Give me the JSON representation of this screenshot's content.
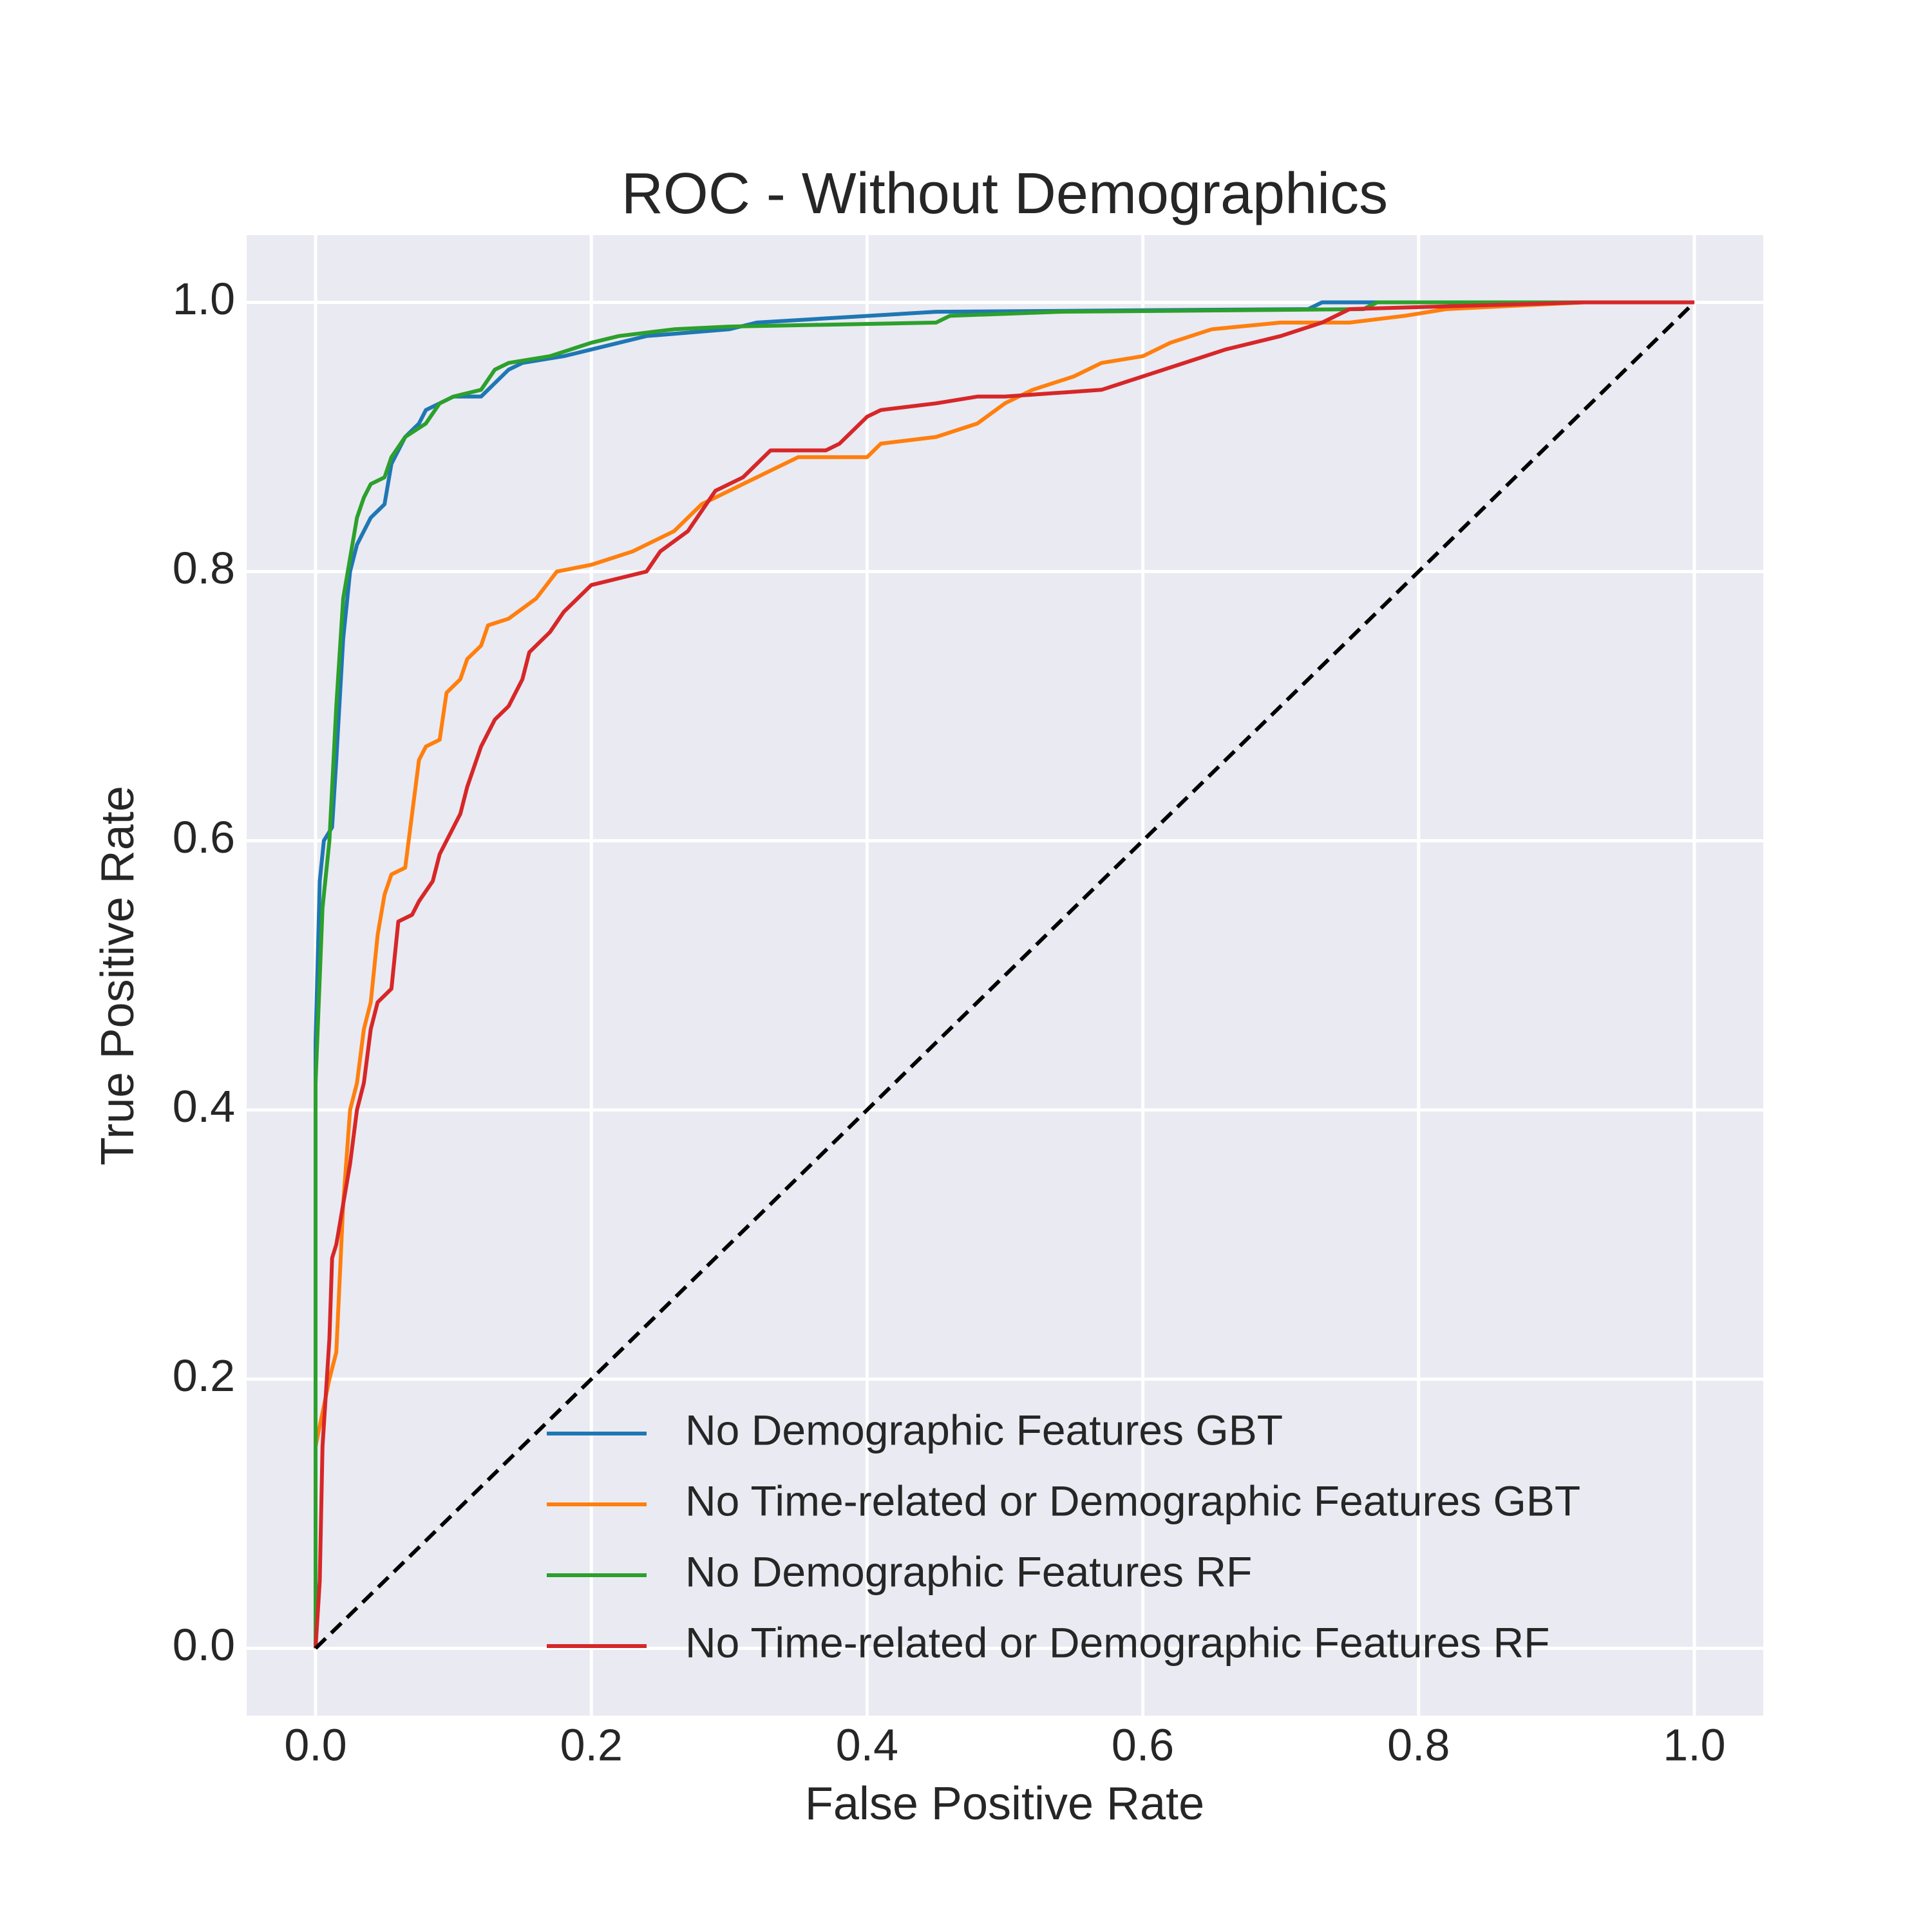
{
  "chart_data": {
    "type": "line",
    "title": "ROC - Without Demographics",
    "x_label": "False Positive Rate",
    "y_label": "True Positive Rate",
    "xlim": [
      -0.05,
      1.05
    ],
    "ylim": [
      -0.05,
      1.05
    ],
    "xticks": [
      {
        "value": 0,
        "label": "0.0"
      },
      0.2,
      0.4,
      0.6,
      0.8,
      {
        "value": 1,
        "label": "1.0"
      }
    ],
    "yticks": [
      {
        "value": 0,
        "label": "0.0"
      },
      0.2,
      0.4,
      0.6,
      0.8,
      {
        "value": 1,
        "label": "1.0"
      }
    ],
    "grid": true,
    "legend_position": "lower right",
    "series": [
      {
        "name": "No Demographic Features GBT",
        "color": "#1f77b4",
        "x": [
          0,
          0,
          0.003,
          0.006,
          0.012,
          0.015,
          0.02,
          0.025,
          0.03,
          0.035,
          0.04,
          0.05,
          0.055,
          0.065,
          0.075,
          0.08,
          0.09,
          0.1,
          0.12,
          0.13,
          0.14,
          0.15,
          0.18,
          0.2,
          0.24,
          0.3,
          0.32,
          0.45,
          0.72,
          0.73,
          1
        ],
        "values": [
          0,
          0.45,
          0.57,
          0.6,
          0.61,
          0.66,
          0.75,
          0.8,
          0.82,
          0.83,
          0.84,
          0.85,
          0.88,
          0.9,
          0.91,
          0.92,
          0.925,
          0.93,
          0.93,
          0.94,
          0.95,
          0.955,
          0.96,
          0.965,
          0.975,
          0.98,
          0.985,
          0.993,
          0.995,
          1,
          1
        ]
      },
      {
        "name": "No Time-related or Demographic Features GBT",
        "color": "#ff7f0e",
        "x": [
          0,
          0,
          0.01,
          0.015,
          0.02,
          0.025,
          0.03,
          0.035,
          0.04,
          0.045,
          0.05,
          0.055,
          0.065,
          0.07,
          0.075,
          0.08,
          0.09,
          0.095,
          0.105,
          0.11,
          0.12,
          0.125,
          0.14,
          0.16,
          0.175,
          0.2,
          0.215,
          0.23,
          0.26,
          0.28,
          0.3,
          0.32,
          0.34,
          0.35,
          0.4,
          0.41,
          0.45,
          0.48,
          0.5,
          0.52,
          0.55,
          0.57,
          0.6,
          0.62,
          0.65,
          0.7,
          0.75,
          0.79,
          0.82,
          0.92,
          1
        ],
        "values": [
          0,
          0.15,
          0.2,
          0.22,
          0.33,
          0.4,
          0.42,
          0.46,
          0.48,
          0.53,
          0.56,
          0.575,
          0.58,
          0.62,
          0.66,
          0.67,
          0.675,
          0.71,
          0.72,
          0.735,
          0.745,
          0.76,
          0.765,
          0.78,
          0.8,
          0.805,
          0.81,
          0.815,
          0.83,
          0.85,
          0.86,
          0.87,
          0.88,
          0.885,
          0.885,
          0.895,
          0.9,
          0.91,
          0.925,
          0.935,
          0.945,
          0.955,
          0.96,
          0.97,
          0.98,
          0.985,
          0.985,
          0.99,
          0.995,
          1,
          1
        ]
      },
      {
        "name": "No Demographic Features RF",
        "color": "#2ca02c",
        "x": [
          0,
          0,
          0.005,
          0.01,
          0.015,
          0.02,
          0.025,
          0.03,
          0.035,
          0.04,
          0.05,
          0.055,
          0.065,
          0.08,
          0.09,
          0.1,
          0.12,
          0.13,
          0.14,
          0.17,
          0.2,
          0.22,
          0.26,
          0.3,
          0.45,
          0.46,
          0.54,
          0.76,
          0.77,
          1
        ],
        "values": [
          0,
          0.42,
          0.55,
          0.6,
          0.7,
          0.78,
          0.81,
          0.84,
          0.855,
          0.865,
          0.87,
          0.885,
          0.9,
          0.91,
          0.925,
          0.93,
          0.935,
          0.95,
          0.955,
          0.96,
          0.97,
          0.975,
          0.98,
          0.982,
          0.985,
          0.99,
          0.993,
          0.995,
          1,
          1
        ]
      },
      {
        "name": "No Time-related or Demographic Features RF",
        "color": "#d62728",
        "x": [
          0,
          0.003,
          0.005,
          0.01,
          0.012,
          0.015,
          0.02,
          0.025,
          0.03,
          0.035,
          0.04,
          0.045,
          0.055,
          0.06,
          0.07,
          0.075,
          0.085,
          0.09,
          0.1,
          0.105,
          0.11,
          0.12,
          0.13,
          0.14,
          0.15,
          0.155,
          0.17,
          0.18,
          0.19,
          0.2,
          0.22,
          0.24,
          0.25,
          0.27,
          0.28,
          0.29,
          0.31,
          0.32,
          0.33,
          0.37,
          0.38,
          0.39,
          0.4,
          0.41,
          0.45,
          0.48,
          0.5,
          0.57,
          0.6,
          0.63,
          0.66,
          0.7,
          0.73,
          0.75,
          0.92,
          1
        ],
        "values": [
          0,
          0.05,
          0.15,
          0.23,
          0.29,
          0.3,
          0.33,
          0.36,
          0.4,
          0.42,
          0.46,
          0.48,
          0.49,
          0.54,
          0.545,
          0.555,
          0.57,
          0.59,
          0.61,
          0.62,
          0.64,
          0.67,
          0.69,
          0.7,
          0.72,
          0.74,
          0.755,
          0.77,
          0.78,
          0.79,
          0.795,
          0.8,
          0.815,
          0.83,
          0.845,
          0.86,
          0.87,
          0.88,
          0.89,
          0.89,
          0.895,
          0.905,
          0.915,
          0.92,
          0.925,
          0.93,
          0.93,
          0.935,
          0.945,
          0.955,
          0.965,
          0.975,
          0.985,
          0.995,
          1,
          1
        ]
      }
    ],
    "reference_line": {
      "x": [
        0,
        1
      ],
      "values": [
        0,
        1
      ],
      "color": "#000000",
      "dashed": true
    }
  }
}
